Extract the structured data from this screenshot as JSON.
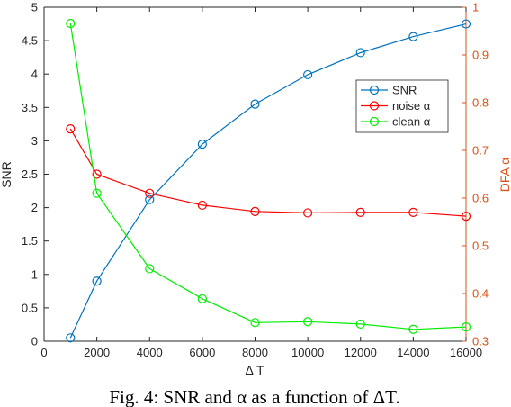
{
  "chart_data": {
    "type": "line",
    "x": [
      1000,
      2000,
      4000,
      6000,
      8000,
      10000,
      12000,
      14000,
      16000
    ],
    "series": [
      {
        "name": "SNR",
        "axis": "left",
        "color": "#0072BD",
        "values": [
          0.05,
          0.9,
          2.12,
          2.95,
          3.55,
          3.99,
          4.32,
          4.56,
          4.75
        ]
      },
      {
        "name": "noise  α",
        "axis": "right",
        "color": "#FF0000",
        "values": [
          0.745,
          0.65,
          0.61,
          0.585,
          0.572,
          0.569,
          0.57,
          0.57,
          0.562
        ]
      },
      {
        "name": "clean  α",
        "axis": "right",
        "color": "#00EE00",
        "values": [
          0.966,
          0.61,
          0.452,
          0.389,
          0.339,
          0.341,
          0.336,
          0.325,
          0.33
        ]
      }
    ],
    "xlabel": "Δ T",
    "ylabel": "SNR",
    "y2label": "DFA α",
    "xlim": [
      0,
      16000
    ],
    "ylim": [
      0,
      5
    ],
    "y2lim": [
      0.3,
      1.0
    ],
    "xticks": [
      0,
      2000,
      4000,
      6000,
      8000,
      10000,
      12000,
      14000,
      16000
    ],
    "xtick_labels": [
      "0",
      "2000",
      "4000",
      "6000",
      "8000",
      "10000",
      "12000",
      "14000",
      "16000"
    ],
    "yticks": [
      0,
      0.5,
      1,
      1.5,
      2,
      2.5,
      3,
      3.5,
      4,
      4.5,
      5
    ],
    "ytick_labels": [
      "0",
      "0.5",
      "1",
      "1.5",
      "2",
      "2.5",
      "3",
      "3.5",
      "4",
      "4.5",
      "5"
    ],
    "y2ticks": [
      0.3,
      0.4,
      0.5,
      0.6,
      0.7,
      0.8,
      0.9,
      1.0
    ],
    "y2tick_labels": [
      "0.3",
      "0.4",
      "0.5",
      "0.6",
      "0.7",
      "0.8",
      "0.9",
      "1"
    ],
    "grid": false,
    "legend": "upper-right",
    "left_axis_color": "#000000",
    "right_axis_color": "#D95319"
  },
  "caption": "Fig. 4: SNR and α as a function of ΔT."
}
